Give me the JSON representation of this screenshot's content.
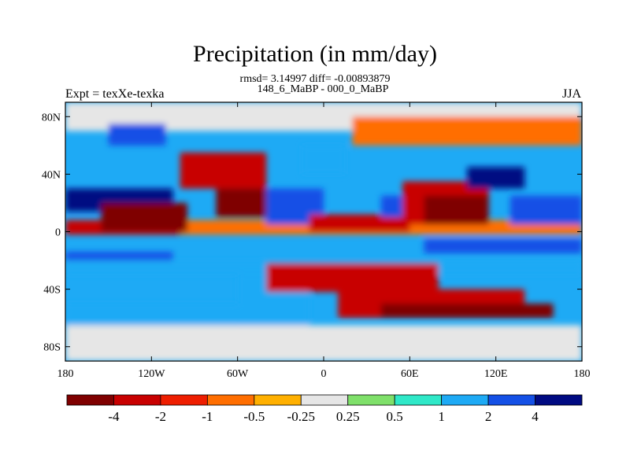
{
  "chart_data": {
    "type": "heatmap",
    "title": "Precipitation (in mm/day)",
    "subtitle": "rmsd= 3.14997 diff= -0.00893879",
    "comparison": "148_6_MaBP - 000_0_MaBP",
    "left_label": "Expt = texXe-texka",
    "right_label": "JJA",
    "x_ticks": [
      "180",
      "120W",
      "60W",
      "0",
      "60E",
      "120E",
      "180"
    ],
    "y_ticks": [
      "80N",
      "40N",
      "0",
      "40S",
      "80S"
    ],
    "x_range": [
      -180,
      180
    ],
    "y_range": [
      -90,
      90
    ],
    "colorbar": {
      "labels": [
        "-4",
        "-2",
        "-1",
        "-0.5",
        "-0.25",
        "0.25",
        "0.5",
        "1",
        "2",
        "4"
      ],
      "colors": [
        "#7f0000",
        "#c80000",
        "#ee1e00",
        "#ff6e00",
        "#ffb000",
        "#e6e6e6",
        "#7fe06a",
        "#2fe8c8",
        "#1eaaf5",
        "#1450e6",
        "#000a82"
      ]
    },
    "regions": [
      {
        "lon": -180,
        "lat": 8,
        "w": 360,
        "h": -10,
        "level": "#ff6e00"
      },
      {
        "lon": -180,
        "lat": 30,
        "w": 75,
        "h": -16,
        "level": "#000a82"
      },
      {
        "lon": -180,
        "lat": 8,
        "w": 80,
        "h": -10,
        "level": "#c80000"
      },
      {
        "lon": -180,
        "lat": -14,
        "w": 75,
        "h": -8,
        "level": "#1450e6"
      },
      {
        "lon": -155,
        "lat": 20,
        "w": 60,
        "h": -20,
        "level": "#7f0000"
      },
      {
        "lon": -100,
        "lat": 55,
        "w": 60,
        "h": -25,
        "level": "#c80000"
      },
      {
        "lon": -75,
        "lat": 30,
        "w": 40,
        "h": -20,
        "level": "#7f0000"
      },
      {
        "lon": -40,
        "lat": 30,
        "w": 40,
        "h": -25,
        "level": "#1450e6"
      },
      {
        "lon": -15,
        "lat": 60,
        "w": 30,
        "h": -20,
        "level": "#1eaaf5"
      },
      {
        "lon": -10,
        "lat": 12,
        "w": 70,
        "h": -12,
        "level": "#c80000"
      },
      {
        "lon": 40,
        "lat": 25,
        "w": 30,
        "h": -15,
        "level": "#1450e6"
      },
      {
        "lon": 55,
        "lat": 35,
        "w": 60,
        "h": -30,
        "level": "#c80000"
      },
      {
        "lon": 70,
        "lat": 25,
        "w": 45,
        "h": -20,
        "level": "#7f0000"
      },
      {
        "lon": 100,
        "lat": 45,
        "w": 40,
        "h": -15,
        "level": "#000a82"
      },
      {
        "lon": 130,
        "lat": 25,
        "w": 50,
        "h": -20,
        "level": "#1450e6"
      },
      {
        "lon": 70,
        "lat": -5,
        "w": 110,
        "h": -10,
        "level": "#1450e6"
      },
      {
        "lon": -180,
        "lat": -20,
        "w": 360,
        "h": -10,
        "level": "#1eaaf5"
      },
      {
        "lon": -60,
        "lat": -30,
        "w": 50,
        "h": -40,
        "level": "#1eaaf5"
      },
      {
        "lon": -40,
        "lat": -22,
        "w": 120,
        "h": -20,
        "level": "#c80000"
      },
      {
        "lon": 10,
        "lat": -40,
        "w": 130,
        "h": -20,
        "level": "#c80000"
      },
      {
        "lon": 40,
        "lat": -50,
        "w": 120,
        "h": -10,
        "level": "#7f0000"
      },
      {
        "lon": -180,
        "lat": -50,
        "w": 130,
        "h": -15,
        "level": "#1eaaf5"
      },
      {
        "lon": -180,
        "lat": -65,
        "w": 360,
        "h": -25,
        "level": "#e6e6e6"
      },
      {
        "lon": -180,
        "lat": 90,
        "w": 360,
        "h": -20,
        "level": "#e6e6e6"
      },
      {
        "lon": 20,
        "lat": 80,
        "w": 160,
        "h": -20,
        "level": "#ff6e00"
      },
      {
        "lon": -150,
        "lat": 75,
        "w": 40,
        "h": -15,
        "level": "#1450e6"
      }
    ]
  }
}
